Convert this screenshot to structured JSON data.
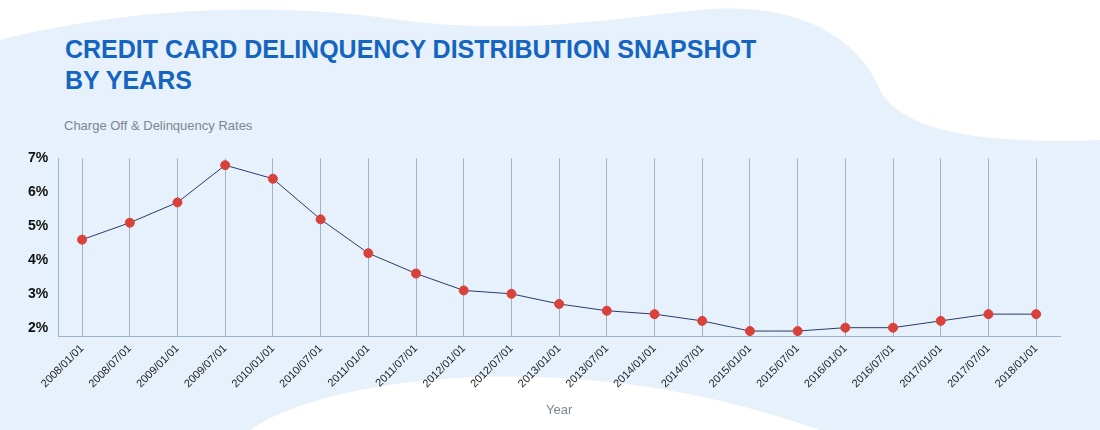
{
  "chart_data": {
    "type": "line",
    "title": "CREDIT CARD DELINQUENCY DISTRIBUTION SNAPSHOT BY YEARS",
    "y_label": "Charge Off & Delinquency Rates",
    "x_label": "Year",
    "categories": [
      "2008/01/01",
      "2008/07/01",
      "2009/01/01",
      "2009/07/01",
      "2010/01/01",
      "2010/07/01",
      "2011/01/01",
      "2011/07/01",
      "2012/01/01",
      "2012/07/01",
      "2013/01/01",
      "2013/07/01",
      "2014/01/01",
      "2014/07/01",
      "2015/01/01",
      "2015/07/01",
      "2016/01/01",
      "2016/07/01",
      "2017/01/01",
      "2017/07/01",
      "2018/01/01"
    ],
    "series": [
      {
        "name": "Charge Off & Delinquency Rates",
        "color": "#2b3a67",
        "marker": "circle",
        "line_style": "solid",
        "values": [
          4.6,
          5.1,
          5.7,
          6.8,
          6.4,
          5.2,
          4.2,
          3.6,
          3.1,
          3.0,
          2.7,
          2.5,
          2.4,
          2.2,
          1.9,
          1.9,
          2.0,
          2.0,
          2.2,
          2.4,
          2.4
        ]
      }
    ],
    "ylim": [
      1.75,
      7
    ],
    "yticks": [
      {
        "value": 2,
        "label": "2%"
      },
      {
        "value": 3,
        "label": "3%"
      },
      {
        "value": 4,
        "label": "4%"
      },
      {
        "value": 5,
        "label": "5%"
      },
      {
        "value": 6,
        "label": "6%"
      },
      {
        "value": 7,
        "label": "7%"
      }
    ],
    "grid": "x"
  }
}
